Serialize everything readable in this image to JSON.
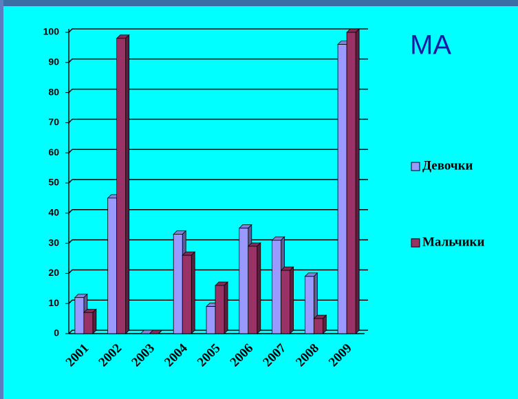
{
  "chart_data": {
    "type": "bar",
    "title": "МА",
    "categories": [
      "2001",
      "2002",
      "2003",
      "2004",
      "2005",
      "2006",
      "2007",
      "2008",
      "2009"
    ],
    "series": [
      {
        "name": "Девочки",
        "color": "#9999ff",
        "values": [
          12,
          45,
          0,
          33,
          9,
          35,
          31,
          19,
          96
        ]
      },
      {
        "name": "Мальчики",
        "color": "#993366",
        "values": [
          7,
          98,
          0,
          26,
          16,
          29,
          21,
          5,
          100
        ]
      }
    ],
    "ylim": [
      0,
      100
    ],
    "yticks": [
      0,
      10,
      20,
      30,
      40,
      50,
      60,
      70,
      80,
      90,
      100
    ],
    "grid": true
  }
}
